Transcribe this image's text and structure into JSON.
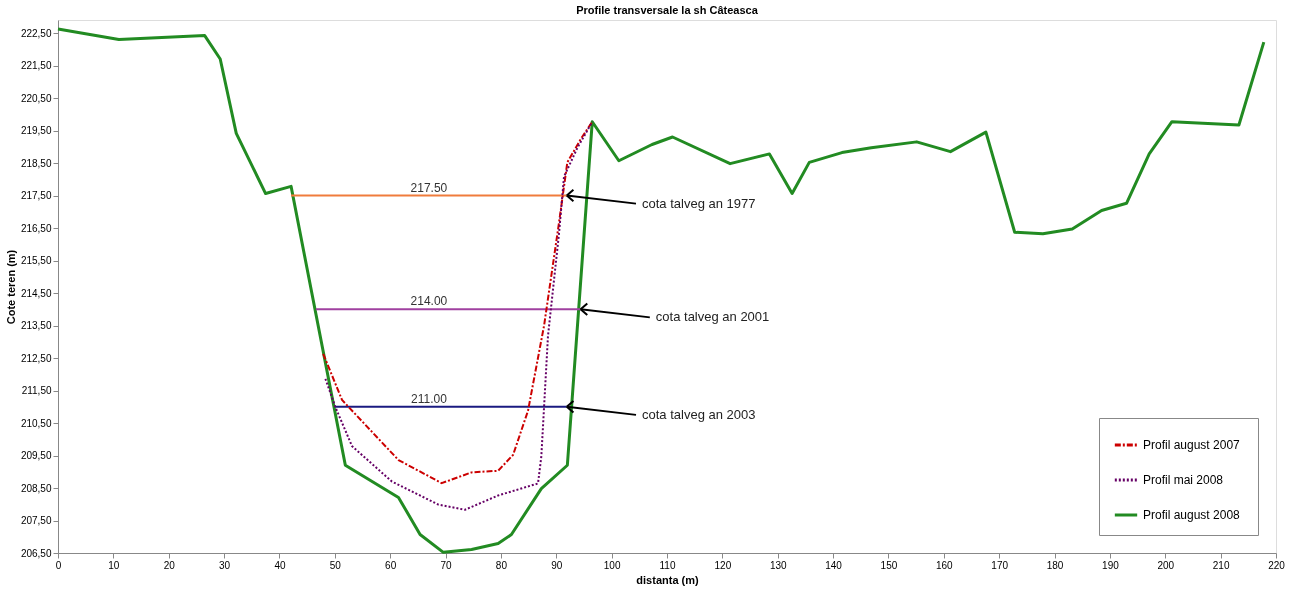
{
  "chart_data": {
    "type": "line",
    "title": "Profile transversale la sh Câteasca",
    "xlabel": "distanta (m)",
    "ylabel": "Cote teren (m)",
    "xlim": [
      0,
      220
    ],
    "xticks": [
      0,
      10,
      20,
      30,
      40,
      50,
      60,
      70,
      80,
      90,
      100,
      110,
      120,
      130,
      140,
      150,
      160,
      170,
      180,
      190,
      200,
      210,
      220
    ],
    "ylim": [
      206.5,
      222.9
    ],
    "yticks": [
      {
        "value": 206.5,
        "label": "206,50"
      },
      {
        "value": 207.5,
        "label": "207,50"
      },
      {
        "value": 208.5,
        "label": "208,50"
      },
      {
        "value": 209.5,
        "label": "209,50"
      },
      {
        "value": 210.5,
        "label": "210,50"
      },
      {
        "value": 211.5,
        "label": "211,50"
      },
      {
        "value": 212.5,
        "label": "212,50"
      },
      {
        "value": 213.5,
        "label": "213,50"
      },
      {
        "value": 214.5,
        "label": "214,50"
      },
      {
        "value": 215.5,
        "label": "215,50"
      },
      {
        "value": 216.5,
        "label": "216,50"
      },
      {
        "value": 217.5,
        "label": "217,50"
      },
      {
        "value": 218.5,
        "label": "218,50"
      },
      {
        "value": 219.5,
        "label": "219,50"
      },
      {
        "value": 220.5,
        "label": "220,50"
      },
      {
        "value": 221.5,
        "label": "221,50"
      },
      {
        "value": 222.5,
        "label": "222,50"
      }
    ],
    "grid": false,
    "legend": "bottom right",
    "marker": "none",
    "series": [
      {
        "name": "Profil august 2007",
        "color": "#cc0000",
        "line_style": "dashed",
        "x": [
          47.9,
          51.3,
          61.5,
          69.3,
          74.7,
          79.5,
          82.2,
          84.9,
          87.8,
          90.5,
          92.0,
          94.4,
          96.5
        ],
        "values": [
          212.63,
          211.21,
          209.36,
          208.65,
          208.98,
          209.03,
          209.52,
          210.88,
          213.5,
          216.67,
          218.52,
          219.23,
          219.77
        ]
      },
      {
        "name": "Profil mai 2008",
        "color": "#660066",
        "line_style": "dotted",
        "x": [
          48.3,
          50.1,
          53.1,
          60.3,
          68.7,
          73.5,
          79.5,
          86.7,
          87.3,
          88.5,
          90.5,
          91.4,
          93.8,
          96.5
        ],
        "values": [
          211.86,
          210.99,
          209.79,
          208.7,
          207.99,
          207.83,
          208.27,
          208.64,
          209.47,
          213.17,
          216.34,
          218.08,
          218.96,
          219.77
        ]
      },
      {
        "name": "Profil  august 2008",
        "color": "#228b22",
        "line_style": "solid",
        "x": [
          0,
          11,
          26.5,
          29.3,
          32.2,
          37.5,
          42.1,
          51.9,
          61.5,
          65.4,
          69.6,
          74.7,
          79.5,
          81.9,
          87.3,
          92.0,
          96.5,
          101.3,
          107.3,
          111.0,
          121.4,
          128.5,
          132.6,
          135.7,
          141.6,
          146.9,
          155.1,
          161.2,
          167.6,
          172.8,
          177.9,
          183.2,
          188.5,
          193.0,
          197.1,
          201.2,
          213.3,
          217.8
        ],
        "values": [
          222.62,
          222.3,
          222.42,
          221.7,
          219.41,
          217.56,
          217.78,
          209.2,
          208.21,
          207.07,
          206.52,
          206.61,
          206.79,
          207.07,
          208.48,
          209.2,
          219.77,
          218.57,
          219.07,
          219.3,
          218.48,
          218.78,
          217.56,
          218.52,
          218.82,
          218.97,
          219.15,
          218.85,
          219.45,
          216.37,
          216.32,
          216.47,
          217.04,
          217.26,
          218.78,
          219.77,
          219.67,
          222.22
        ]
      },
      {
        "color": "#f07c3c",
        "line_style": "solid",
        "x": [
          42.1,
          91.9
        ],
        "values": [
          217.5,
          217.5
        ]
      },
      {
        "color": "#a040a0",
        "line_style": "solid",
        "x": [
          46.6,
          94.4
        ],
        "values": [
          214.0,
          214.0
        ]
      },
      {
        "color": "#1a1a80",
        "line_style": "solid",
        "x": [
          50.0,
          91.9
        ],
        "values": [
          211.0,
          211.0
        ]
      }
    ],
    "annotations": [
      {
        "text": "217.50",
        "x": 67,
        "y": 217.5
      },
      {
        "text": "214.00",
        "x": 67,
        "y": 214.0
      },
      {
        "text": "211.00",
        "x": 67,
        "y": 211.0
      },
      {
        "text": "cota talveg  an 1977",
        "x": 91.9,
        "y": 217.5
      },
      {
        "text": "cota talveg  an 2001",
        "x": 94.4,
        "y": 214.0
      },
      {
        "text": "cota talveg  an 2003",
        "x": 91.9,
        "y": 211.0
      }
    ]
  }
}
